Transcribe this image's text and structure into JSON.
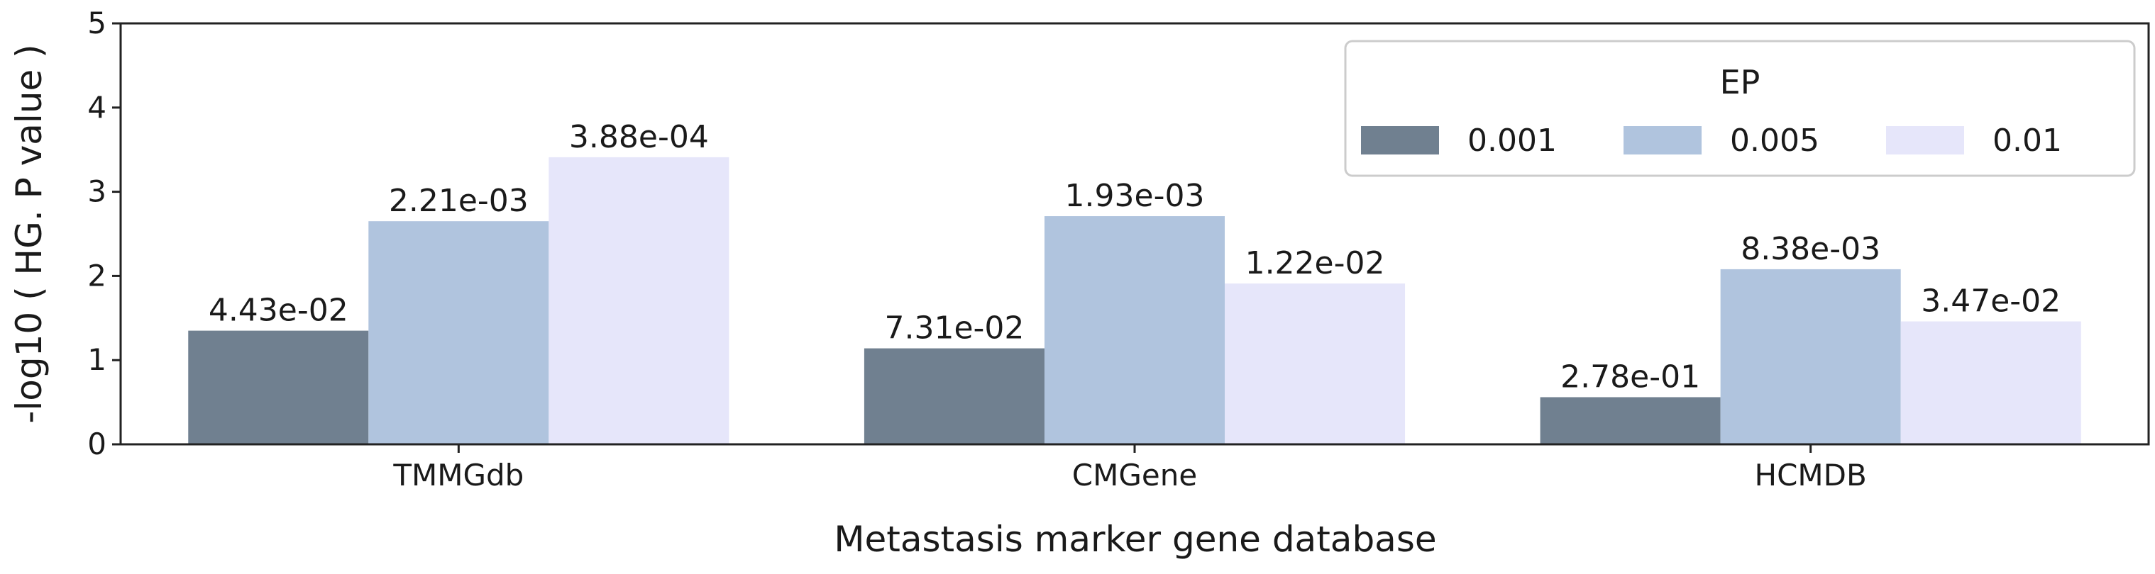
{
  "chart_data": {
    "type": "bar",
    "xlabel": "Metastasis marker gene database",
    "ylabel": "-log10 ( HG. P value )",
    "ylim": [
      0,
      5
    ],
    "yticks": [
      "0",
      "1",
      "2",
      "3",
      "4",
      "5"
    ],
    "categories": [
      "TMMGdb",
      "CMGene",
      "HCMDB"
    ],
    "legend": {
      "title": "EP",
      "placement": "top-right"
    },
    "grid": false,
    "series": [
      {
        "name": "0.001",
        "color": "#708090",
        "values": [
          1.35,
          1.14,
          0.56
        ],
        "labels": [
          "4.43e-02",
          "7.31e-02",
          "2.78e-01"
        ]
      },
      {
        "name": "0.005",
        "color": "#b0c4de",
        "values": [
          2.65,
          2.71,
          2.08
        ],
        "labels": [
          "2.21e-03",
          "1.93e-03",
          "8.38e-03"
        ]
      },
      {
        "name": "0.01",
        "color": "#e6e6fa",
        "values": [
          3.41,
          1.91,
          1.46
        ],
        "labels": [
          "3.88e-04",
          "1.22e-02",
          "3.47e-02"
        ]
      }
    ]
  }
}
